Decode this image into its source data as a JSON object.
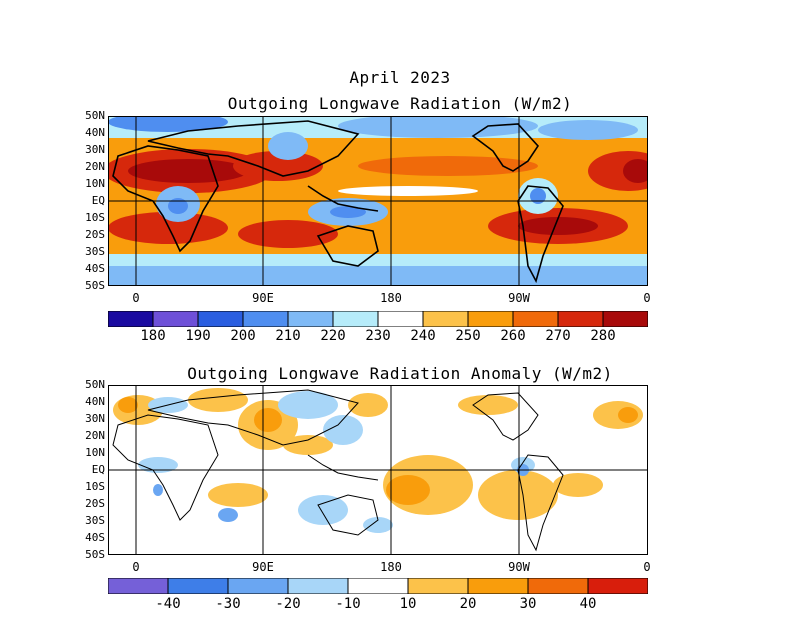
{
  "top_panel": {
    "month_title": "April 2023",
    "title": "Outgoing Longwave Radiation (W/m2)",
    "lat_labels": [
      "50N",
      "40N",
      "30N",
      "20N",
      "10N",
      "EQ",
      "10S",
      "20S",
      "30S",
      "40S",
      "50S"
    ],
    "lon_labels": [
      "0",
      "90E",
      "180",
      "90W",
      "0"
    ],
    "colorbar": {
      "colors": [
        "#1a0aa0",
        "#6e50d8",
        "#2a5ee0",
        "#4f8ef0",
        "#7fbaf6",
        "#b6ecfa",
        "#ffffff",
        "#fcc24a",
        "#f99d0c",
        "#f06a0a",
        "#d6280c",
        "#a80a0a"
      ],
      "labels": [
        "180",
        "190",
        "200",
        "210",
        "220",
        "230",
        "240",
        "250",
        "260",
        "270",
        "280"
      ]
    }
  },
  "bottom_panel": {
    "title": "Outgoing Longwave Radiation Anomaly (W/m2)",
    "lat_labels": [
      "50N",
      "40N",
      "30N",
      "20N",
      "10N",
      "EQ",
      "10S",
      "20S",
      "30S",
      "40S",
      "50S"
    ],
    "lon_labels": [
      "0",
      "90E",
      "180",
      "90W",
      "0"
    ],
    "colorbar": {
      "colors": [
        "#7560d8",
        "#3e7ee8",
        "#6aa6f2",
        "#a8d6f8",
        "#ffffff",
        "#fcc24a",
        "#f99d0c",
        "#f06a0a",
        "#d81e0c"
      ],
      "labels": [
        "-40",
        "-30",
        "-20",
        "-10",
        "10",
        "20",
        "30",
        "40"
      ]
    }
  }
}
